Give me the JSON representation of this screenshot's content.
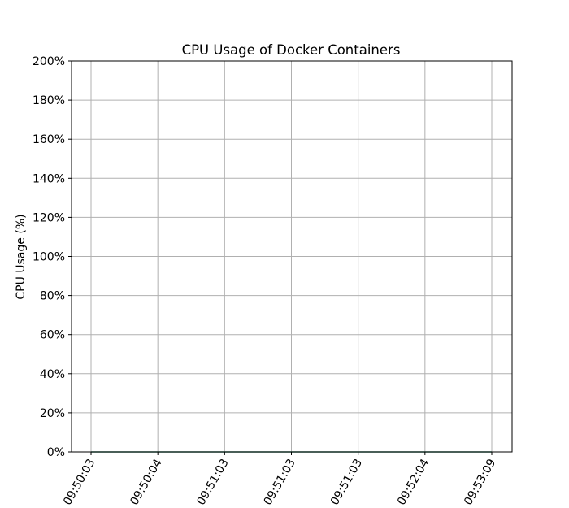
{
  "chart_data": {
    "type": "line",
    "title": "CPU Usage of Docker Containers",
    "xlabel": "",
    "ylabel": "CPU Usage (%)",
    "categories": [
      "09:50:03",
      "09:50:04",
      "09:51:03",
      "09:51:03",
      "09:51:03",
      "09:52:04",
      "09:53:09"
    ],
    "ylim": [
      0,
      200
    ],
    "yticks": [
      0,
      20,
      40,
      60,
      80,
      100,
      120,
      140,
      160,
      180,
      200
    ],
    "ytick_suffix": "%",
    "grid": true,
    "series": [
      {
        "values": [
          0,
          0,
          0,
          0,
          0,
          0,
          0
        ],
        "color": "#2a7f62"
      }
    ]
  }
}
